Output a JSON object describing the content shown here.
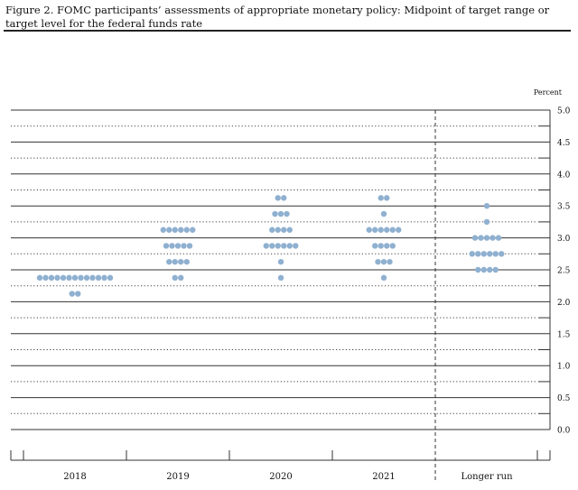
{
  "figure": {
    "title": "Figure 2. FOMC participants’ assessments of appropriate monetary policy: Midpoint of target range or target level for the federal funds rate"
  },
  "chart_data": {
    "type": "scatter",
    "title": "Figure 2. FOMC participants’ assessments of appropriate monetary policy: Midpoint of target range or target level for the federal funds rate",
    "ylabel": "Percent",
    "ylim": [
      0,
      5.0
    ],
    "y_ticks": [
      "5.0",
      "4.5",
      "4.0",
      "3.5",
      "3.0",
      "2.5",
      "2.0",
      "1.5",
      "1.0",
      "0.5",
      "0.0"
    ],
    "dot_color": "#8fb0d0",
    "categories": [
      "2018",
      "2019",
      "2020",
      "2021",
      "Longer run"
    ],
    "dots": [
      [
        {
          "y": 2.375,
          "count": 13
        },
        {
          "y": 2.125,
          "count": 2
        }
      ],
      [
        {
          "y": 3.125,
          "count": 6
        },
        {
          "y": 2.875,
          "count": 5
        },
        {
          "y": 2.625,
          "count": 4
        },
        {
          "y": 2.375,
          "count": 2
        }
      ],
      [
        {
          "y": 3.625,
          "count": 2
        },
        {
          "y": 3.375,
          "count": 3
        },
        {
          "y": 3.125,
          "count": 4
        },
        {
          "y": 2.875,
          "count": 6
        },
        {
          "y": 2.625,
          "count": 1
        },
        {
          "y": 2.375,
          "count": 1
        }
      ],
      [
        {
          "y": 3.625,
          "count": 2
        },
        {
          "y": 3.375,
          "count": 1
        },
        {
          "y": 3.125,
          "count": 6
        },
        {
          "y": 2.875,
          "count": 4
        },
        {
          "y": 2.625,
          "count": 3
        },
        {
          "y": 2.375,
          "count": 1
        }
      ],
      [
        {
          "y": 3.5,
          "count": 1
        },
        {
          "y": 3.25,
          "count": 1
        },
        {
          "y": 3.0,
          "count": 5
        },
        {
          "y": 2.75,
          "count": 6
        },
        {
          "y": 2.5,
          "count": 4
        }
      ]
    ]
  }
}
